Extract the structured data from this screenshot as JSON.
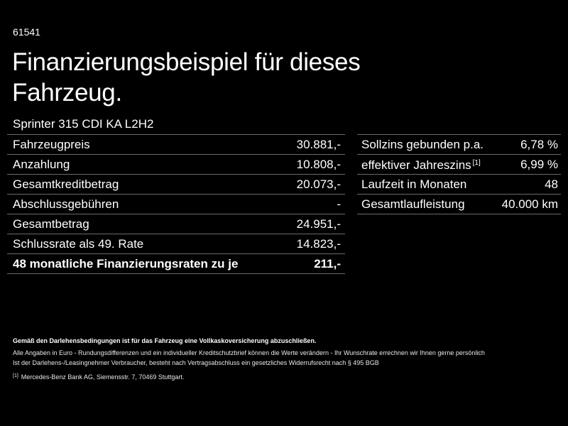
{
  "header": {
    "code": "61541",
    "title": "Finanzierungsbeispiel für dieses Fahrzeug.",
    "model": "Sprinter 315 CDI KA L2H2"
  },
  "financing_table": {
    "rows": [
      {
        "label": "Fahrzeugpreis",
        "value": "30.881,-"
      },
      {
        "label": "Anzahlung",
        "value": "10.808,-"
      },
      {
        "label": "Gesamtkreditbetrag",
        "value": "20.073,-"
      },
      {
        "label": "Abschlussgebühren",
        "value": "-"
      },
      {
        "label": "Gesamtbetrag",
        "value": "24.951,-"
      },
      {
        "label": "Schlussrate als 49. Rate",
        "value": "14.823,-"
      },
      {
        "label": "48 monatliche Finanzierungsraten zu je",
        "value": "211,-"
      }
    ]
  },
  "terms_table": {
    "rows": [
      {
        "label": "Sollzins gebunden p.a.",
        "value": "6,78 %"
      },
      {
        "label": "effektiver Jahreszins",
        "footnote": "[1]",
        "value": "6,99 %"
      },
      {
        "label": "Laufzeit in Monaten",
        "value": "48"
      },
      {
        "label": "Gesamtlaufleistung",
        "value": "40.000 km"
      }
    ]
  },
  "footer": {
    "insurance_note": "Gemäß den Darlehensbedingungen ist für das Fahrzeug eine Vollkaskoversicherung abzuschließen.",
    "line1": "Alle Angaben in Euro - Rundungsdifferenzen und ein individueller Kreditschutzbrief können die Werte verändern - Ihr Wunschrate errechnen wir Ihnen gerne persönlich",
    "line2": "Ist der Darlehens-/Leasingnehmer Verbraucher, besteht nach Vertragsabschluss ein gesetzliches Widerrufsrecht nach § 495 BGB",
    "footnote_marker": "[1]",
    "footnote_text": "Mercedes-Benz Bank AG, Siemensstr. 7, 70469 Stuttgart."
  }
}
